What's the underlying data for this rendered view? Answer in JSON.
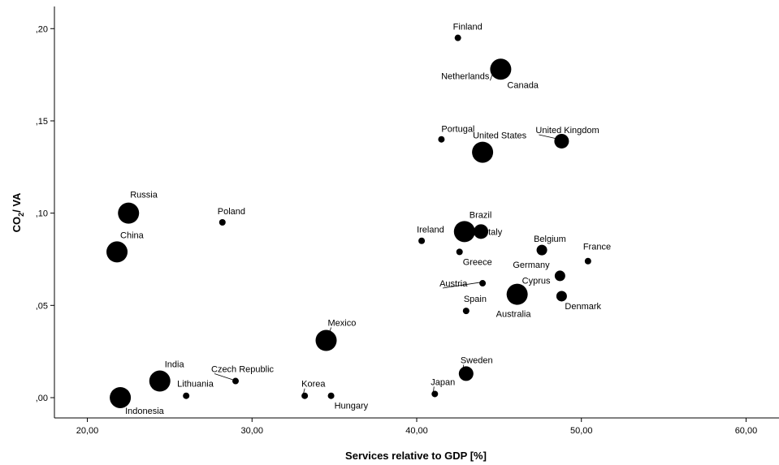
{
  "chart_data": {
    "type": "scatter",
    "xlabel": "Services relative to GDP [%]",
    "ylabel": "CO₂/ VA",
    "ylabel_main": "CO",
    "ylabel_sub": "2",
    "ylabel_tail": "/ VA",
    "xlim": [
      18,
      62
    ],
    "ylim": [
      -0.011,
      0.212
    ],
    "x_ticks": [
      20,
      30,
      40,
      50,
      60
    ],
    "x_tick_labels": [
      "20,00",
      "30,00",
      "40,00",
      "50,00",
      "60,00"
    ],
    "y_ticks": [
      0,
      0.05,
      0.1,
      0.15,
      0.2
    ],
    "y_tick_labels": [
      ",00",
      ",05",
      ",10",
      ",15",
      ",20"
    ],
    "grid": false,
    "point_color": "#000000",
    "points": [
      {
        "name": "Finland",
        "x": 42.5,
        "y": 0.195,
        "size": "small"
      },
      {
        "name": "Netherlands",
        "x": 45.1,
        "y": 0.178,
        "size": "large"
      },
      {
        "name": "Canada",
        "x": 45.1,
        "y": 0.178,
        "size": "large"
      },
      {
        "name": "Portugal",
        "x": 41.5,
        "y": 0.14,
        "size": "small"
      },
      {
        "name": "United States",
        "x": 44.0,
        "y": 0.133,
        "size": "large"
      },
      {
        "name": "United Kingdom",
        "x": 48.8,
        "y": 0.139,
        "size": "medium"
      },
      {
        "name": "Russia",
        "x": 22.5,
        "y": 0.1,
        "size": "large"
      },
      {
        "name": "Poland",
        "x": 28.2,
        "y": 0.095,
        "size": "small"
      },
      {
        "name": "China",
        "x": 21.8,
        "y": 0.079,
        "size": "large"
      },
      {
        "name": "Brazil",
        "x": 42.9,
        "y": 0.09,
        "size": "large"
      },
      {
        "name": "Italy",
        "x": 43.9,
        "y": 0.09,
        "size": "medium"
      },
      {
        "name": "Ireland",
        "x": 40.3,
        "y": 0.085,
        "size": "small"
      },
      {
        "name": "Greece",
        "x": 42.6,
        "y": 0.079,
        "size": "small"
      },
      {
        "name": "Belgium",
        "x": 47.6,
        "y": 0.08,
        "size": "small-medium"
      },
      {
        "name": "France",
        "x": 50.4,
        "y": 0.074,
        "size": "small"
      },
      {
        "name": "Germany",
        "x": 48.7,
        "y": 0.066,
        "size": "small-medium"
      },
      {
        "name": "Austria",
        "x": 44.0,
        "y": 0.062,
        "size": "small"
      },
      {
        "name": "Cyprus",
        "x": 46.1,
        "y": 0.056,
        "size": "large"
      },
      {
        "name": "Australia",
        "x": 46.1,
        "y": 0.056,
        "size": "large"
      },
      {
        "name": "Denmark",
        "x": 48.8,
        "y": 0.055,
        "size": "small-medium"
      },
      {
        "name": "Spain",
        "x": 43.0,
        "y": 0.047,
        "size": "small"
      },
      {
        "name": "Mexico",
        "x": 34.5,
        "y": 0.031,
        "size": "large"
      },
      {
        "name": "Sweden",
        "x": 43.0,
        "y": 0.013,
        "size": "medium"
      },
      {
        "name": "India",
        "x": 24.4,
        "y": 0.009,
        "size": "large"
      },
      {
        "name": "Czech Republic",
        "x": 29.0,
        "y": 0.009,
        "size": "small"
      },
      {
        "name": "Lithuania",
        "x": 26.0,
        "y": 0.001,
        "size": "small"
      },
      {
        "name": "Korea",
        "x": 33.2,
        "y": 0.001,
        "size": "small"
      },
      {
        "name": "Hungary",
        "x": 34.8,
        "y": 0.001,
        "size": "small"
      },
      {
        "name": "Japan",
        "x": 41.1,
        "y": 0.002,
        "size": "small"
      },
      {
        "name": "Indonesia",
        "x": 22.0,
        "y": 0.0,
        "size": "large"
      }
    ]
  }
}
